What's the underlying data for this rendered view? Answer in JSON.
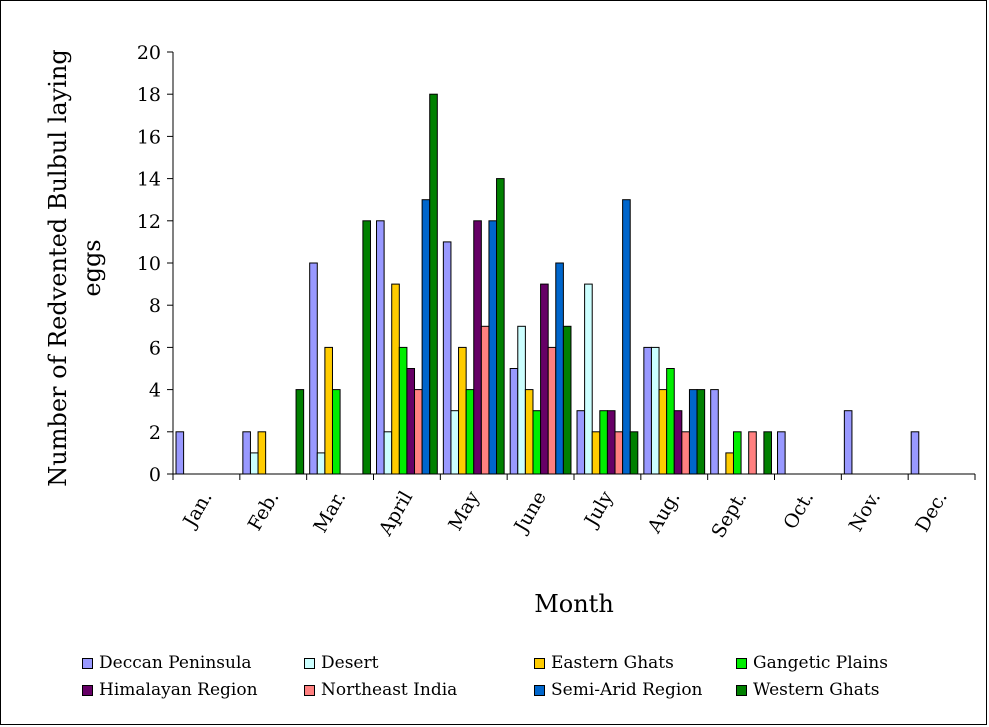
{
  "chart_data": {
    "type": "bar",
    "title": "",
    "xlabel": "Month",
    "ylabel": "Number of Redvented Bulbul laying eggs",
    "ylabel_lines": [
      "Number of Redvented Bulbul laying",
      "eggs"
    ],
    "ylim": [
      0,
      20
    ],
    "yticks": [
      0,
      2,
      4,
      6,
      8,
      10,
      12,
      14,
      16,
      18,
      20
    ],
    "grid": false,
    "legend_position": "bottom",
    "categories": [
      "Jan.",
      "Feb.",
      "Mar.",
      "April",
      "May",
      "June",
      "July",
      "Aug.",
      "Sept.",
      "Oct.",
      "Nov.",
      "Dec."
    ],
    "series": [
      {
        "name": "Deccan Peninsula",
        "color": "#9999ff",
        "values": [
          2,
          2,
          10,
          12,
          11,
          5,
          3,
          6,
          4,
          2,
          3,
          2
        ]
      },
      {
        "name": "Desert",
        "color": "#ccffff",
        "values": [
          0,
          1,
          1,
          2,
          3,
          7,
          9,
          6,
          0,
          0,
          0,
          0
        ]
      },
      {
        "name": "Eastern Ghats",
        "color": "#ffcc00",
        "values": [
          0,
          2,
          6,
          9,
          6,
          4,
          2,
          4,
          1,
          0,
          0,
          0
        ]
      },
      {
        "name": "Gangetic Plains",
        "color": "#00ee00",
        "values": [
          0,
          0,
          4,
          6,
          4,
          3,
          3,
          5,
          2,
          0,
          0,
          0
        ]
      },
      {
        "name": "Himalayan Region",
        "color": "#660066",
        "values": [
          0,
          0,
          0,
          5,
          12,
          9,
          3,
          3,
          0,
          0,
          0,
          0
        ]
      },
      {
        "name": "Northeast India",
        "color": "#ff8080",
        "values": [
          0,
          0,
          0,
          4,
          7,
          6,
          2,
          2,
          2,
          0,
          0,
          0
        ]
      },
      {
        "name": "Semi-Arid Region",
        "color": "#0066cc",
        "values": [
          0,
          0,
          0,
          13,
          12,
          10,
          13,
          4,
          0,
          0,
          0,
          0
        ]
      },
      {
        "name": "Western Ghats",
        "color": "#008000",
        "values": [
          0,
          4,
          12,
          18,
          14,
          7,
          2,
          4,
          2,
          0,
          0,
          0
        ]
      }
    ]
  }
}
